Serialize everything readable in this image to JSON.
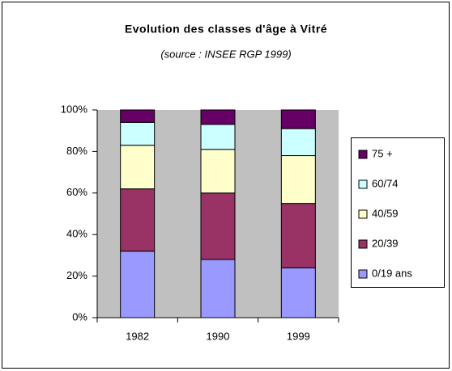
{
  "chart_data": {
    "type": "stacked_bar_100",
    "title": "Evolution des classes d'âge à Vitré",
    "subtitle": "(source : INSEE RGP 1999)",
    "categories": [
      "1982",
      "1990",
      "1999"
    ],
    "series": [
      {
        "name": "0/19 ans",
        "color": "#9999ff",
        "values": [
          32,
          28,
          24
        ]
      },
      {
        "name": "20/39",
        "color": "#993366",
        "values": [
          30,
          32,
          31
        ]
      },
      {
        "name": "40/59",
        "color": "#ffffcc",
        "values": [
          21,
          21,
          23
        ]
      },
      {
        "name": "60/74",
        "color": "#ccffff",
        "values": [
          11,
          12,
          13
        ]
      },
      {
        "name": "75 +",
        "color": "#660066",
        "values": [
          6,
          7,
          9
        ]
      }
    ],
    "ylim": [
      0,
      100
    ],
    "yticks": [
      {
        "value": 0,
        "label": "0%"
      },
      {
        "value": 20,
        "label": "20%"
      },
      {
        "value": 40,
        "label": "40%"
      },
      {
        "value": 60,
        "label": "60%"
      },
      {
        "value": 80,
        "label": "80%"
      },
      {
        "value": 100,
        "label": "100%"
      }
    ],
    "grid": false,
    "plot_background": "#c0c0c0",
    "legend": "right"
  }
}
